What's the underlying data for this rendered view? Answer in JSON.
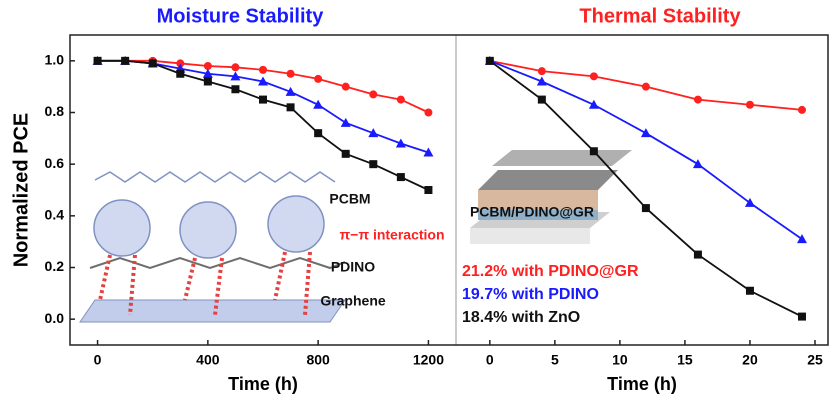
{
  "chart_data": [
    {
      "type": "line",
      "title": "Moisture Stability",
      "title_color": "#1a1aff",
      "x_label": "Time (h)",
      "y_label": "Normalized PCE",
      "xlim": [
        -100,
        1300
      ],
      "xticks": [
        0,
        400,
        800,
        1200
      ],
      "ylim": [
        -0.1,
        1.1
      ],
      "yticks": [
        {
          "value": 0,
          "label": "0.0"
        },
        {
          "value": 0.2,
          "label": "0.2"
        },
        {
          "value": 0.4,
          "label": "0.4"
        },
        {
          "value": 0.6,
          "label": "0.6"
        },
        {
          "value": 0.8,
          "label": "0.8"
        },
        {
          "value": 1,
          "label": "1.0"
        }
      ],
      "x": [
        0,
        100,
        200,
        300,
        400,
        500,
        600,
        700,
        800,
        900,
        1000,
        1100,
        1200
      ],
      "series": [
        {
          "color": "#ff2020",
          "marker": "circle",
          "values": [
            1.0,
            1.0,
            1.0,
            0.99,
            0.98,
            0.975,
            0.965,
            0.95,
            0.93,
            0.9,
            0.87,
            0.85,
            0.8
          ]
        },
        {
          "color": "#1a1aff",
          "marker": "triangle",
          "values": [
            1.0,
            1.0,
            0.99,
            0.97,
            0.95,
            0.94,
            0.92,
            0.88,
            0.83,
            0.76,
            0.72,
            0.68,
            0.645
          ]
        },
        {
          "color": "#111111",
          "marker": "square",
          "values": [
            1.0,
            1.0,
            0.99,
            0.95,
            0.92,
            0.89,
            0.85,
            0.82,
            0.72,
            0.64,
            0.6,
            0.55,
            0.5
          ]
        }
      ],
      "annotations": [
        {
          "text": "PCBM",
          "color": "#111111"
        },
        {
          "text": "π−π interaction",
          "color": "#ff2020"
        },
        {
          "text": "PDINO",
          "color": "#111111"
        },
        {
          "text": "Graphene",
          "color": "#111111"
        }
      ]
    },
    {
      "type": "line",
      "title": "Thermal Stability",
      "title_color": "#ff2020",
      "x_label": "Time (h)",
      "xlim": [
        -2.6,
        26
      ],
      "xticks": [
        0,
        5,
        10,
        15,
        20,
        25
      ],
      "ylim": [
        -0.1,
        1.1
      ],
      "x": [
        0,
        4,
        8,
        12,
        16,
        20,
        24
      ],
      "series": [
        {
          "name": "21.2% with PDINO@GR",
          "color": "#ff2020",
          "marker": "circle",
          "values": [
            1.0,
            0.96,
            0.94,
            0.9,
            0.85,
            0.83,
            0.81
          ]
        },
        {
          "name": "19.7% with PDINO",
          "color": "#1a1aff",
          "marker": "triangle",
          "values": [
            1.0,
            0.92,
            0.83,
            0.72,
            0.6,
            0.45,
            0.31
          ]
        },
        {
          "name": "18.4% with ZnO",
          "color": "#111111",
          "marker": "square",
          "values": [
            1.0,
            0.85,
            0.65,
            0.43,
            0.25,
            0.11,
            0.01
          ]
        }
      ],
      "annotations": [
        {
          "text": "PCBM/PDINO@GR",
          "color": "#111111"
        }
      ]
    }
  ]
}
